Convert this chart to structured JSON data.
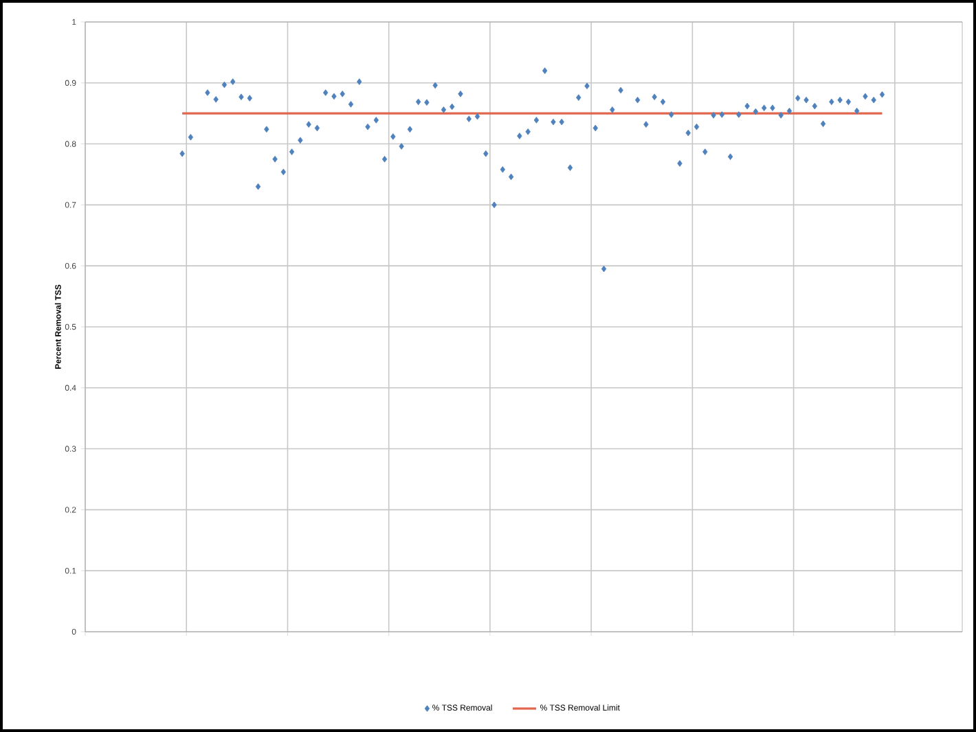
{
  "chart_data": {
    "type": "scatter",
    "ylabel": "Percent Removal TSS",
    "categories": [
      null,
      null,
      null,
      null,
      null,
      null,
      null,
      null,
      null,
      null,
      null,
      null,
      null,
      null,
      null,
      null,
      null,
      null,
      null,
      null,
      null,
      null,
      null,
      null,
      null,
      null,
      null,
      null,
      null,
      null,
      null,
      null,
      null,
      null,
      null,
      null,
      null,
      null,
      null,
      null,
      null,
      null,
      null,
      null,
      null,
      null,
      null,
      null,
      null,
      null,
      null,
      null,
      null,
      null,
      null,
      null,
      null,
      null,
      null,
      null,
      null,
      null,
      null,
      null,
      null,
      null,
      null,
      null,
      null,
      null,
      null,
      null,
      null,
      null,
      null,
      null,
      null,
      null,
      null,
      null,
      null,
      null,
      null,
      null,
      null,
      null,
      null,
      null,
      null,
      null,
      null,
      null,
      null,
      null,
      null,
      null,
      null,
      null,
      null,
      null,
      null,
      null,
      null,
      null
    ],
    "ylim": [
      0,
      1
    ],
    "yticks": [
      0,
      0.1,
      0.2,
      0.3,
      0.4,
      0.5,
      0.6,
      0.7,
      0.8,
      0.9,
      1
    ],
    "tick_labels": "y",
    "grid": true,
    "legend": "bottom",
    "marker": "diamond",
    "series": [
      {
        "name": "% TSS Removal",
        "color": "#4f81bd",
        "values": [
          null,
          null,
          null,
          null,
          null,
          null,
          null,
          null,
          null,
          null,
          null,
          0.784,
          0.811,
          null,
          0.884,
          0.873,
          0.897,
          0.902,
          0.877,
          0.875,
          0.73,
          0.824,
          0.775,
          0.754,
          0.787,
          0.806,
          0.832,
          0.826,
          0.884,
          0.878,
          0.882,
          0.865,
          0.902,
          0.828,
          0.839,
          0.775,
          0.812,
          0.796,
          0.824,
          0.869,
          0.868,
          0.896,
          0.856,
          0.861,
          0.882,
          0.841,
          0.845,
          0.784,
          0.7,
          0.758,
          0.746,
          0.813,
          0.82,
          0.839,
          0.92,
          0.836,
          0.836,
          0.761,
          0.876,
          0.895,
          0.826,
          0.595,
          0.856,
          0.888,
          null,
          0.872,
          0.832,
          0.877,
          0.869,
          0.848,
          0.768,
          0.818,
          0.828,
          0.787,
          0.847,
          0.848,
          0.779,
          0.848,
          0.862,
          0.853,
          0.859,
          0.859,
          0.847,
          0.854,
          0.875,
          0.872,
          0.862,
          0.833,
          0.869,
          0.872,
          0.869,
          0.854,
          0.878,
          0.872,
          0.881,
          null,
          null,
          null,
          null,
          null,
          null,
          null,
          null,
          null
        ]
      },
      {
        "name": "% TSS Removal Limit",
        "type": "line",
        "color": "#e0664d",
        "marker": "none",
        "values": [
          null,
          null,
          null,
          null,
          null,
          null,
          null,
          null,
          null,
          null,
          null,
          0.85,
          0.85,
          0.85,
          0.85,
          0.85,
          0.85,
          0.85,
          0.85,
          0.85,
          0.85,
          0.85,
          0.85,
          0.85,
          0.85,
          0.85,
          0.85,
          0.85,
          0.85,
          0.85,
          0.85,
          0.85,
          0.85,
          0.85,
          0.85,
          0.85,
          0.85,
          0.85,
          0.85,
          0.85,
          0.85,
          0.85,
          0.85,
          0.85,
          0.85,
          0.85,
          0.85,
          0.85,
          0.85,
          0.85,
          0.85,
          0.85,
          0.85,
          0.85,
          0.85,
          0.85,
          0.85,
          0.85,
          0.85,
          0.85,
          0.85,
          0.85,
          0.85,
          0.85,
          0.85,
          0.85,
          0.85,
          0.85,
          0.85,
          0.85,
          0.85,
          0.85,
          0.85,
          0.85,
          0.85,
          0.85,
          0.85,
          0.85,
          0.85,
          0.85,
          0.85,
          0.85,
          0.85,
          0.85,
          0.85,
          0.85,
          0.85,
          0.85,
          0.85,
          0.85,
          0.85,
          0.85,
          0.85,
          0.85,
          0.85,
          null,
          null,
          null,
          null,
          null,
          null,
          null,
          null,
          null
        ]
      }
    ]
  }
}
